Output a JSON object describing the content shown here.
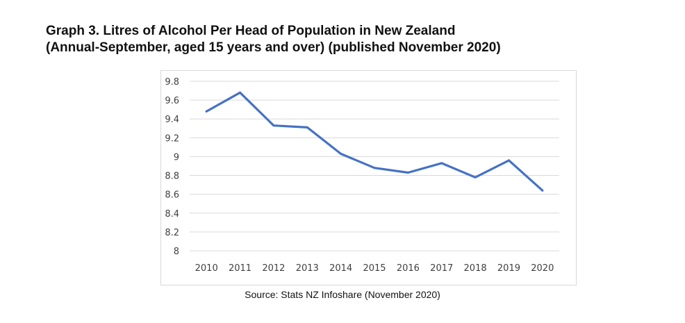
{
  "title_line1": "Graph 3. Litres of Alcohol Per Head of Population in New Zealand",
  "title_line2": "(Annual-September, aged 15 years and over) (published November 2020)",
  "source": "Source: Stats NZ Infoshare (November 2020)",
  "chart_data": {
    "type": "line",
    "title": "Graph 3. Litres of Alcohol Per Head of Population in New Zealand (Annual-September, aged 15 years and over) (published November 2020)",
    "x": [
      "2010",
      "2011",
      "2012",
      "2013",
      "2014",
      "2015",
      "2016",
      "2017",
      "2018",
      "2019",
      "2020"
    ],
    "series": [
      {
        "values": [
          9.48,
          9.68,
          9.33,
          9.31,
          9.03,
          8.88,
          8.83,
          8.93,
          8.78,
          8.96,
          8.64
        ]
      }
    ],
    "y_ticks": [
      "9.8",
      "9.6",
      "9.4",
      "9.2",
      "9",
      "8.8",
      "8.6",
      "8.4",
      "8.2",
      "8"
    ],
    "ylim": [
      8,
      9.8
    ],
    "grid": true,
    "line_color": "#4472C4",
    "grid_color": "#d9d9d9"
  }
}
